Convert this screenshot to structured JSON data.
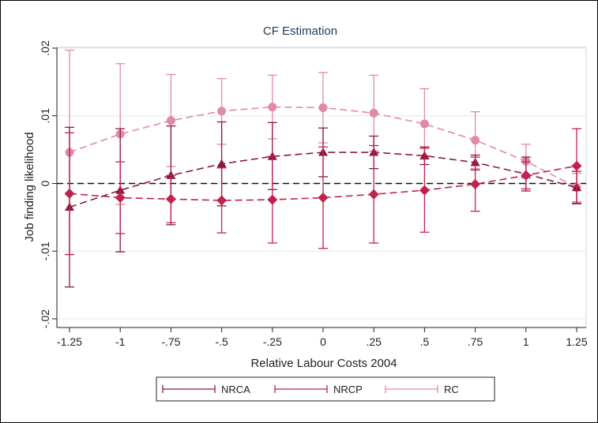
{
  "chart_data": {
    "type": "line",
    "title": "CF Estimation",
    "xlabel": "Relative Labour Costs 2004",
    "ylabel": "Job finding likelihood",
    "x": [
      -1.25,
      -1,
      -0.75,
      -0.5,
      -0.25,
      0,
      0.25,
      0.5,
      0.75,
      1,
      1.25
    ],
    "x_tick_labels": [
      "-1.25",
      "-1",
      "-.75",
      "-.5",
      "-.25",
      "0",
      ".25",
      ".5",
      ".75",
      "1",
      "1.25"
    ],
    "y_ticks": [
      -0.02,
      -0.01,
      0,
      0.01,
      0.02
    ],
    "y_tick_labels": [
      "-.02",
      "-.01",
      "0",
      ".01",
      ".02"
    ],
    "xlim": [
      -1.25,
      1.25
    ],
    "ylim": [
      -0.02,
      0.02
    ],
    "reference_line_y": 0,
    "grid": true,
    "legend_position": "bottom",
    "series": [
      {
        "name": "NRCA",
        "color": "#8b1a3a",
        "marker": "triangle",
        "y": [
          -0.0035,
          -0.001,
          0.0012,
          0.0029,
          0.004,
          0.0046,
          0.0046,
          0.0041,
          0.0031,
          0.0014,
          -0.0006
        ],
        "lower": [
          -0.0153,
          -0.0101,
          -0.0061,
          -0.0033,
          -0.0009,
          0.001,
          0.0022,
          0.0028,
          0.002,
          -0.0011,
          -0.003
        ],
        "upper": [
          0.0083,
          0.0081,
          0.0085,
          0.0091,
          0.009,
          0.0082,
          0.007,
          0.0054,
          0.0042,
          0.0039,
          0.0018
        ]
      },
      {
        "name": "NRCP",
        "color": "#c0224e",
        "marker": "diamond",
        "y": [
          -0.0015,
          -0.0021,
          -0.0023,
          -0.0025,
          -0.0024,
          -0.0021,
          -0.0016,
          -0.001,
          -0.0001,
          0.0012,
          0.0026
        ],
        "lower": [
          -0.0105,
          -0.0074,
          -0.0058,
          -0.0073,
          -0.0088,
          -0.0096,
          -0.0088,
          -0.0072,
          -0.0041,
          -0.0008,
          -0.0029
        ],
        "upper": [
          0.0075,
          0.0032,
          0.0012,
          0.0023,
          0.004,
          0.0054,
          0.0056,
          0.0052,
          0.0039,
          0.0032,
          0.0081
        ]
      },
      {
        "name": "RC",
        "color": "#e08aa6",
        "marker": "circle",
        "y": [
          0.0046,
          0.0073,
          0.0093,
          0.0107,
          0.0113,
          0.0112,
          0.0104,
          0.0088,
          0.0064,
          0.0033,
          -0.0006
        ],
        "lower": [
          -0.0105,
          -0.0031,
          0.0025,
          0.0058,
          0.0066,
          0.006,
          0.0048,
          0.0036,
          0.0022,
          0.0008,
          -0.0027
        ],
        "upper": [
          0.0197,
          0.0177,
          0.0161,
          0.0155,
          0.016,
          0.0164,
          0.016,
          0.014,
          0.0106,
          0.0058,
          0.0015
        ]
      }
    ]
  }
}
